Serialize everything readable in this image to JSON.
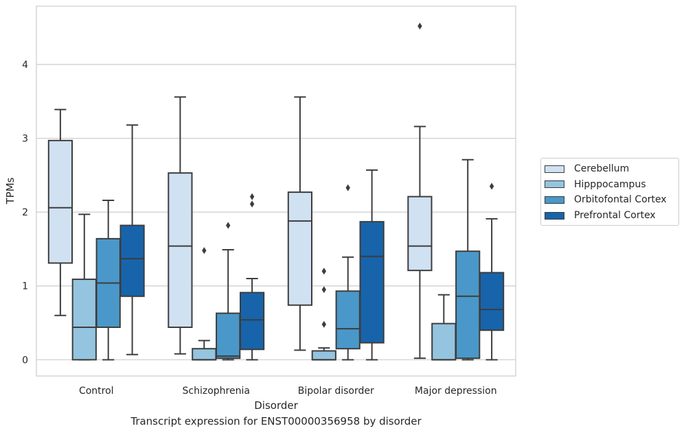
{
  "chart_data": {
    "type": "box",
    "title": "Transcript expression for ENST00000356958 by disorder",
    "xlabel": "Disorder",
    "ylabel": "TPMs",
    "ylim": [
      -0.22,
      4.79
    ],
    "yticks": [
      0,
      1,
      2,
      3,
      4
    ],
    "grid": "horizontal",
    "legend_position": "right",
    "categories": [
      "Control",
      "Schizophrenia",
      "Bipolar disorder",
      "Major depression"
    ],
    "series": [
      {
        "name": "Cerebellum",
        "color": "#d0e1f2",
        "boxes": [
          {
            "whislo": 0.6,
            "q1": 1.31,
            "med": 2.06,
            "q3": 2.97,
            "whishi": 3.39,
            "fliers": []
          },
          {
            "whislo": 0.08,
            "q1": 0.44,
            "med": 1.54,
            "q3": 2.53,
            "whishi": 3.56,
            "fliers": []
          },
          {
            "whislo": 0.13,
            "q1": 0.74,
            "med": 1.88,
            "q3": 2.27,
            "whishi": 3.56,
            "fliers": []
          },
          {
            "whislo": 0.02,
            "q1": 1.21,
            "med": 1.54,
            "q3": 2.21,
            "whishi": 3.16,
            "fliers": [
              4.52
            ]
          }
        ]
      },
      {
        "name": "Hipppocampus",
        "color": "#94c4df",
        "boxes": [
          {
            "whislo": 0.0,
            "q1": 0.0,
            "med": 0.44,
            "q3": 1.09,
            "whishi": 1.97,
            "fliers": []
          },
          {
            "whislo": 0.0,
            "q1": 0.0,
            "med": 0.0,
            "q3": 0.15,
            "whishi": 0.26,
            "fliers": [
              1.48
            ]
          },
          {
            "whislo": 0.0,
            "q1": 0.0,
            "med": 0.0,
            "q3": 0.12,
            "whishi": 0.16,
            "fliers": [
              0.48,
              0.95,
              1.2
            ]
          },
          {
            "whislo": 0.0,
            "q1": 0.0,
            "med": 0.0,
            "q3": 0.49,
            "whishi": 0.88,
            "fliers": []
          }
        ]
      },
      {
        "name": "Orbitofontal Cortex",
        "color": "#4a98c9",
        "boxes": [
          {
            "whislo": 0.0,
            "q1": 0.44,
            "med": 1.04,
            "q3": 1.64,
            "whishi": 2.16,
            "fliers": []
          },
          {
            "whislo": 0.0,
            "q1": 0.02,
            "med": 0.05,
            "q3": 0.63,
            "whishi": 1.49,
            "fliers": [
              1.82
            ]
          },
          {
            "whislo": 0.0,
            "q1": 0.15,
            "med": 0.42,
            "q3": 0.93,
            "whishi": 1.39,
            "fliers": [
              2.33
            ]
          },
          {
            "whislo": 0.0,
            "q1": 0.02,
            "med": 0.86,
            "q3": 1.47,
            "whishi": 2.71,
            "fliers": []
          }
        ]
      },
      {
        "name": "Prefrontal Cortex",
        "color": "#1764ab",
        "boxes": [
          {
            "whislo": 0.07,
            "q1": 0.86,
            "med": 1.37,
            "q3": 1.82,
            "whishi": 3.18,
            "fliers": []
          },
          {
            "whislo": 0.0,
            "q1": 0.14,
            "med": 0.54,
            "q3": 0.91,
            "whishi": 1.1,
            "fliers": [
              2.11,
              2.21
            ]
          },
          {
            "whislo": 0.0,
            "q1": 0.23,
            "med": 1.4,
            "q3": 1.87,
            "whishi": 2.57,
            "fliers": []
          },
          {
            "whislo": 0.0,
            "q1": 0.4,
            "med": 0.68,
            "q3": 1.18,
            "whishi": 1.91,
            "fliers": [
              2.35
            ]
          }
        ]
      }
    ]
  }
}
